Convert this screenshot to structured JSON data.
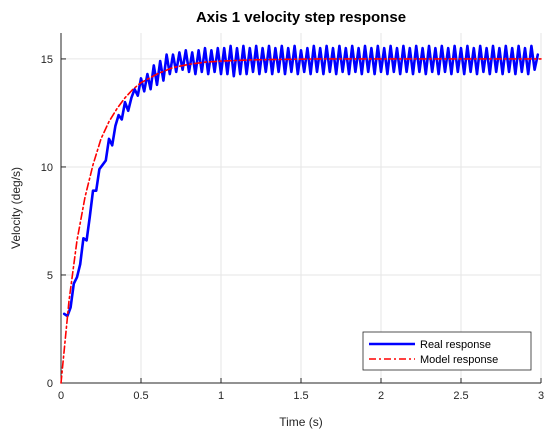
{
  "chart_data": {
    "type": "line",
    "title": "Axis 1 velocity step response",
    "xlabel": "Time (s)",
    "ylabel": "Velocity (deg/s)",
    "xlim": [
      0,
      3
    ],
    "ylim": [
      0,
      16.2
    ],
    "xticks": [
      0,
      0.5,
      1,
      1.5,
      2,
      2.5,
      3
    ],
    "xtick_labels": [
      "0",
      "0.5",
      "1",
      "1.5",
      "2",
      "2.5",
      "3"
    ],
    "yticks": [
      0,
      5,
      10,
      15
    ],
    "ytick_labels": [
      "0",
      "5",
      "10",
      "15"
    ],
    "grid": true,
    "legend_position": "bottom-right",
    "series": [
      {
        "name": "Real response",
        "color": "#0000ff",
        "style": "solid",
        "x": [
          0.02,
          0.04,
          0.06,
          0.08,
          0.1,
          0.12,
          0.14,
          0.16,
          0.18,
          0.2,
          0.22,
          0.24,
          0.26,
          0.28,
          0.3,
          0.32,
          0.34,
          0.36,
          0.38,
          0.4,
          0.42,
          0.44,
          0.46,
          0.48,
          0.5,
          0.52,
          0.54,
          0.56,
          0.58,
          0.6,
          0.62,
          0.64,
          0.66,
          0.68,
          0.7,
          0.72,
          0.74,
          0.76,
          0.78,
          0.8,
          0.82,
          0.84,
          0.86,
          0.88,
          0.9,
          0.92,
          0.94,
          0.96,
          0.98,
          1.0,
          1.02,
          1.04,
          1.06,
          1.08,
          1.1,
          1.12,
          1.14,
          1.16,
          1.18,
          1.2,
          1.22,
          1.24,
          1.26,
          1.28,
          1.3,
          1.32,
          1.34,
          1.36,
          1.38,
          1.4,
          1.42,
          1.44,
          1.46,
          1.48,
          1.5,
          1.52,
          1.54,
          1.56,
          1.58,
          1.6,
          1.62,
          1.64,
          1.66,
          1.68,
          1.7,
          1.72,
          1.74,
          1.76,
          1.78,
          1.8,
          1.82,
          1.84,
          1.86,
          1.88,
          1.9,
          1.92,
          1.94,
          1.96,
          1.98,
          2.0,
          2.02,
          2.04,
          2.06,
          2.08,
          2.1,
          2.12,
          2.14,
          2.16,
          2.18,
          2.2,
          2.22,
          2.24,
          2.26,
          2.28,
          2.3,
          2.32,
          2.34,
          2.36,
          2.38,
          2.4,
          2.42,
          2.44,
          2.46,
          2.48,
          2.5,
          2.52,
          2.54,
          2.56,
          2.58,
          2.6,
          2.62,
          2.64,
          2.66,
          2.68,
          2.7,
          2.72,
          2.74,
          2.76,
          2.78,
          2.8,
          2.82,
          2.84,
          2.86,
          2.88,
          2.9,
          2.92,
          2.94,
          2.96,
          2.98
        ],
        "y": [
          3.2,
          3.1,
          3.5,
          4.6,
          4.9,
          5.5,
          6.7,
          6.6,
          7.7,
          8.9,
          8.9,
          9.9,
          10.1,
          10.3,
          11.3,
          11.0,
          11.9,
          12.4,
          12.2,
          13.0,
          12.6,
          13.2,
          13.6,
          13.3,
          14.1,
          13.5,
          14.3,
          13.6,
          14.7,
          13.8,
          14.9,
          14.0,
          15.2,
          14.3,
          15.2,
          14.4,
          15.3,
          14.5,
          15.4,
          14.4,
          15.3,
          14.3,
          15.4,
          14.4,
          15.5,
          14.3,
          15.4,
          14.4,
          15.5,
          14.3,
          15.5,
          14.3,
          15.6,
          14.2,
          15.5,
          14.3,
          15.6,
          14.3,
          15.5,
          14.4,
          15.6,
          14.3,
          15.5,
          14.4,
          15.6,
          14.3,
          15.5,
          14.4,
          15.6,
          14.3,
          15.5,
          14.4,
          15.6,
          14.3,
          15.4,
          14.4,
          15.5,
          14.3,
          15.6,
          14.4,
          15.5,
          14.3,
          15.6,
          14.4,
          15.5,
          14.3,
          15.6,
          14.4,
          15.5,
          14.3,
          15.6,
          14.4,
          15.5,
          14.3,
          15.6,
          14.4,
          15.5,
          14.3,
          15.6,
          14.4,
          15.5,
          14.3,
          15.6,
          14.4,
          15.5,
          14.3,
          15.6,
          14.4,
          15.5,
          14.3,
          15.6,
          14.4,
          15.5,
          14.3,
          15.6,
          14.4,
          15.5,
          14.3,
          15.6,
          14.4,
          15.5,
          14.3,
          15.6,
          14.4,
          15.5,
          14.3,
          15.6,
          14.4,
          15.5,
          14.3,
          15.6,
          14.4,
          15.5,
          14.3,
          15.6,
          14.4,
          15.5,
          14.3,
          15.6,
          14.4,
          15.5,
          14.3,
          15.6,
          14.4,
          15.5,
          14.3,
          15.6,
          14.5,
          15.2
        ]
      },
      {
        "name": "Model response",
        "color": "#ff0000",
        "style": "dash-dot",
        "x": [
          0.0,
          0.05,
          0.1,
          0.15,
          0.2,
          0.25,
          0.3,
          0.35,
          0.4,
          0.45,
          0.5,
          0.6,
          0.7,
          0.8,
          0.9,
          1.0,
          1.2,
          1.4,
          1.6,
          1.8,
          2.0,
          2.2,
          2.4,
          2.6,
          2.8,
          3.0
        ],
        "y": [
          0.0,
          3.8,
          6.6,
          8.6,
          10.1,
          11.3,
          12.1,
          12.7,
          13.2,
          13.6,
          13.9,
          14.3,
          14.6,
          14.75,
          14.85,
          14.9,
          14.96,
          14.98,
          15.0,
          15.0,
          15.0,
          15.0,
          15.0,
          15.0,
          15.0,
          15.0
        ]
      }
    ]
  }
}
